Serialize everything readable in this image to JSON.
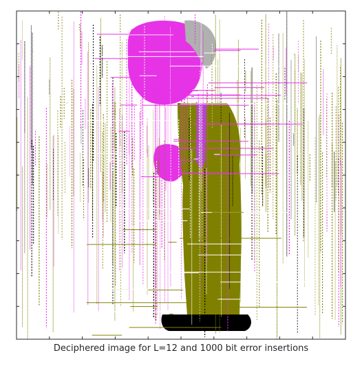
{
  "caption": "Deciphered image for L=12 and 1000 bit error insertions",
  "colors": {
    "magenta": "#e633e6",
    "olive": "#808000",
    "black": "#000000",
    "gray": "#b0b0b0",
    "white": "#ffffff",
    "axis": "#262626"
  },
  "image_content": "corrupted-cartoon-figure"
}
